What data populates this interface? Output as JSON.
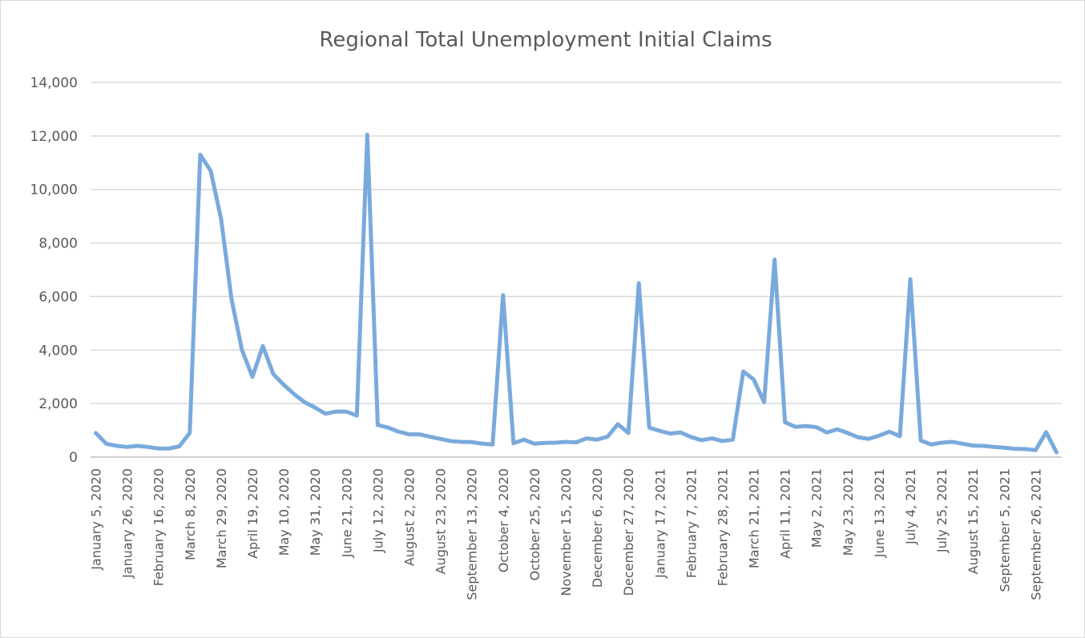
{
  "chart_data": {
    "type": "line",
    "title": "Regional Total Unemployment Initial Claims",
    "xlabel": "",
    "ylabel": "",
    "ylim": [
      0,
      14000
    ],
    "yticks": [
      "0",
      "2,000",
      "4,000",
      "6,000",
      "8,000",
      "10,000",
      "12,000",
      "14,000"
    ],
    "ytick_values": [
      0,
      2000,
      4000,
      6000,
      8000,
      10000,
      12000,
      14000
    ],
    "grid": true,
    "legend": "none",
    "xtick_labels": [
      "January 5, 2020",
      "January 26, 2020",
      "February 16, 2020",
      "March 8, 2020",
      "March 29, 2020",
      "April 19, 2020",
      "May 10, 2020",
      "May 31, 2020",
      "June 21, 2020",
      "July 12, 2020",
      "August 2, 2020",
      "August 23, 2020",
      "September 13, 2020",
      "October 4, 2020",
      "October 25, 2020",
      "November 15, 2020",
      "December 6, 2020",
      "December 27, 2020",
      "January 17, 2021",
      "February 7, 2021",
      "February 28, 2021",
      "March 21, 2021",
      "April 11, 2021",
      "May 2, 2021",
      "May 23, 2021",
      "June 13, 2021",
      "July 4, 2021",
      "July 25, 2021",
      "August 15, 2021",
      "September 5, 2021",
      "September 26, 2021"
    ],
    "xtick_every": 3,
    "series": [
      {
        "color": "#7aaadc",
        "values": [
          900,
          500,
          420,
          380,
          420,
          380,
          320,
          320,
          400,
          900,
          11300,
          10700,
          8900,
          5900,
          4000,
          3000,
          4150,
          3100,
          2700,
          2350,
          2050,
          1850,
          1620,
          1700,
          1700,
          1550,
          12050,
          1200,
          1100,
          950,
          850,
          850,
          760,
          680,
          600,
          570,
          560,
          500,
          470,
          6050,
          520,
          650,
          500,
          530,
          540,
          570,
          550,
          700,
          650,
          760,
          1230,
          900,
          6500,
          1100,
          980,
          880,
          920,
          750,
          630,
          700,
          600,
          650,
          3200,
          2900,
          2050,
          7380,
          1300,
          1130,
          1160,
          1120,
          920,
          1040,
          900,
          740,
          680,
          800,
          950,
          780,
          6650,
          620,
          470,
          540,
          570,
          500,
          430,
          420,
          380,
          350,
          310,
          300,
          260,
          930,
          180
        ]
      }
    ]
  }
}
